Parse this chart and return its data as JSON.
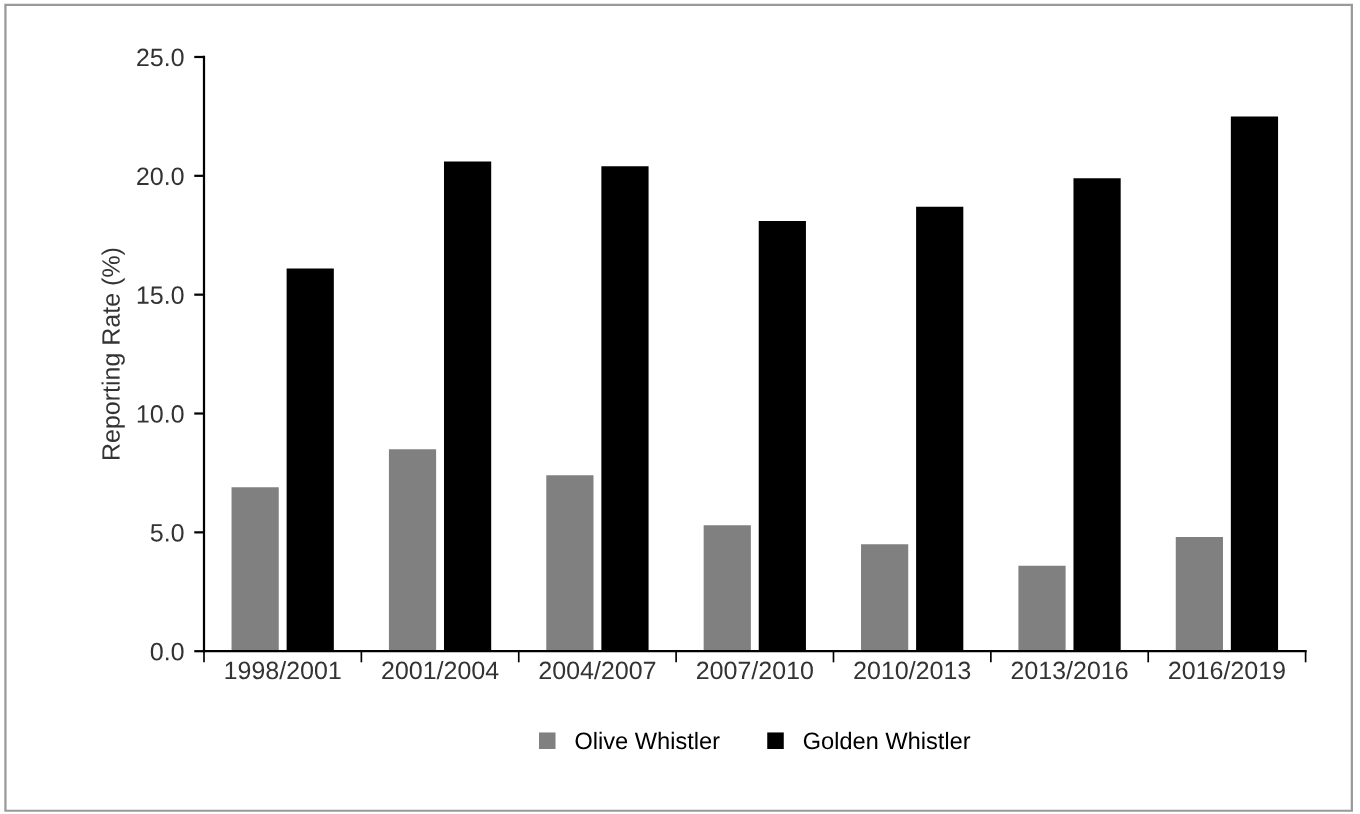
{
  "chart_data": {
    "type": "bar",
    "ylabel": "Reporting Rate (%)",
    "categories": [
      "1998/2001",
      "2001/2004",
      "2004/2007",
      "2007/2010",
      "2010/2013",
      "2013/2016",
      "2016/2019"
    ],
    "series": [
      {
        "name": "Olive Whistler",
        "color": "#808080",
        "values": [
          6.9,
          8.5,
          7.4,
          5.3,
          4.5,
          3.6,
          4.8
        ]
      },
      {
        "name": "Golden Whistler",
        "color": "#000000",
        "values": [
          16.1,
          20.6,
          20.4,
          18.1,
          18.7,
          19.9,
          22.5
        ]
      }
    ],
    "ylim": [
      0,
      25
    ],
    "yticks": [
      {
        "value": 0,
        "label": "0.0"
      },
      {
        "value": 5,
        "label": "5.0"
      },
      {
        "value": 10,
        "label": "10.0"
      },
      {
        "value": 15,
        "label": "15.0"
      },
      {
        "value": 20,
        "label": "20.0"
      },
      {
        "value": 25,
        "label": "25.0"
      }
    ],
    "grid": false,
    "legend": "bottom"
  }
}
